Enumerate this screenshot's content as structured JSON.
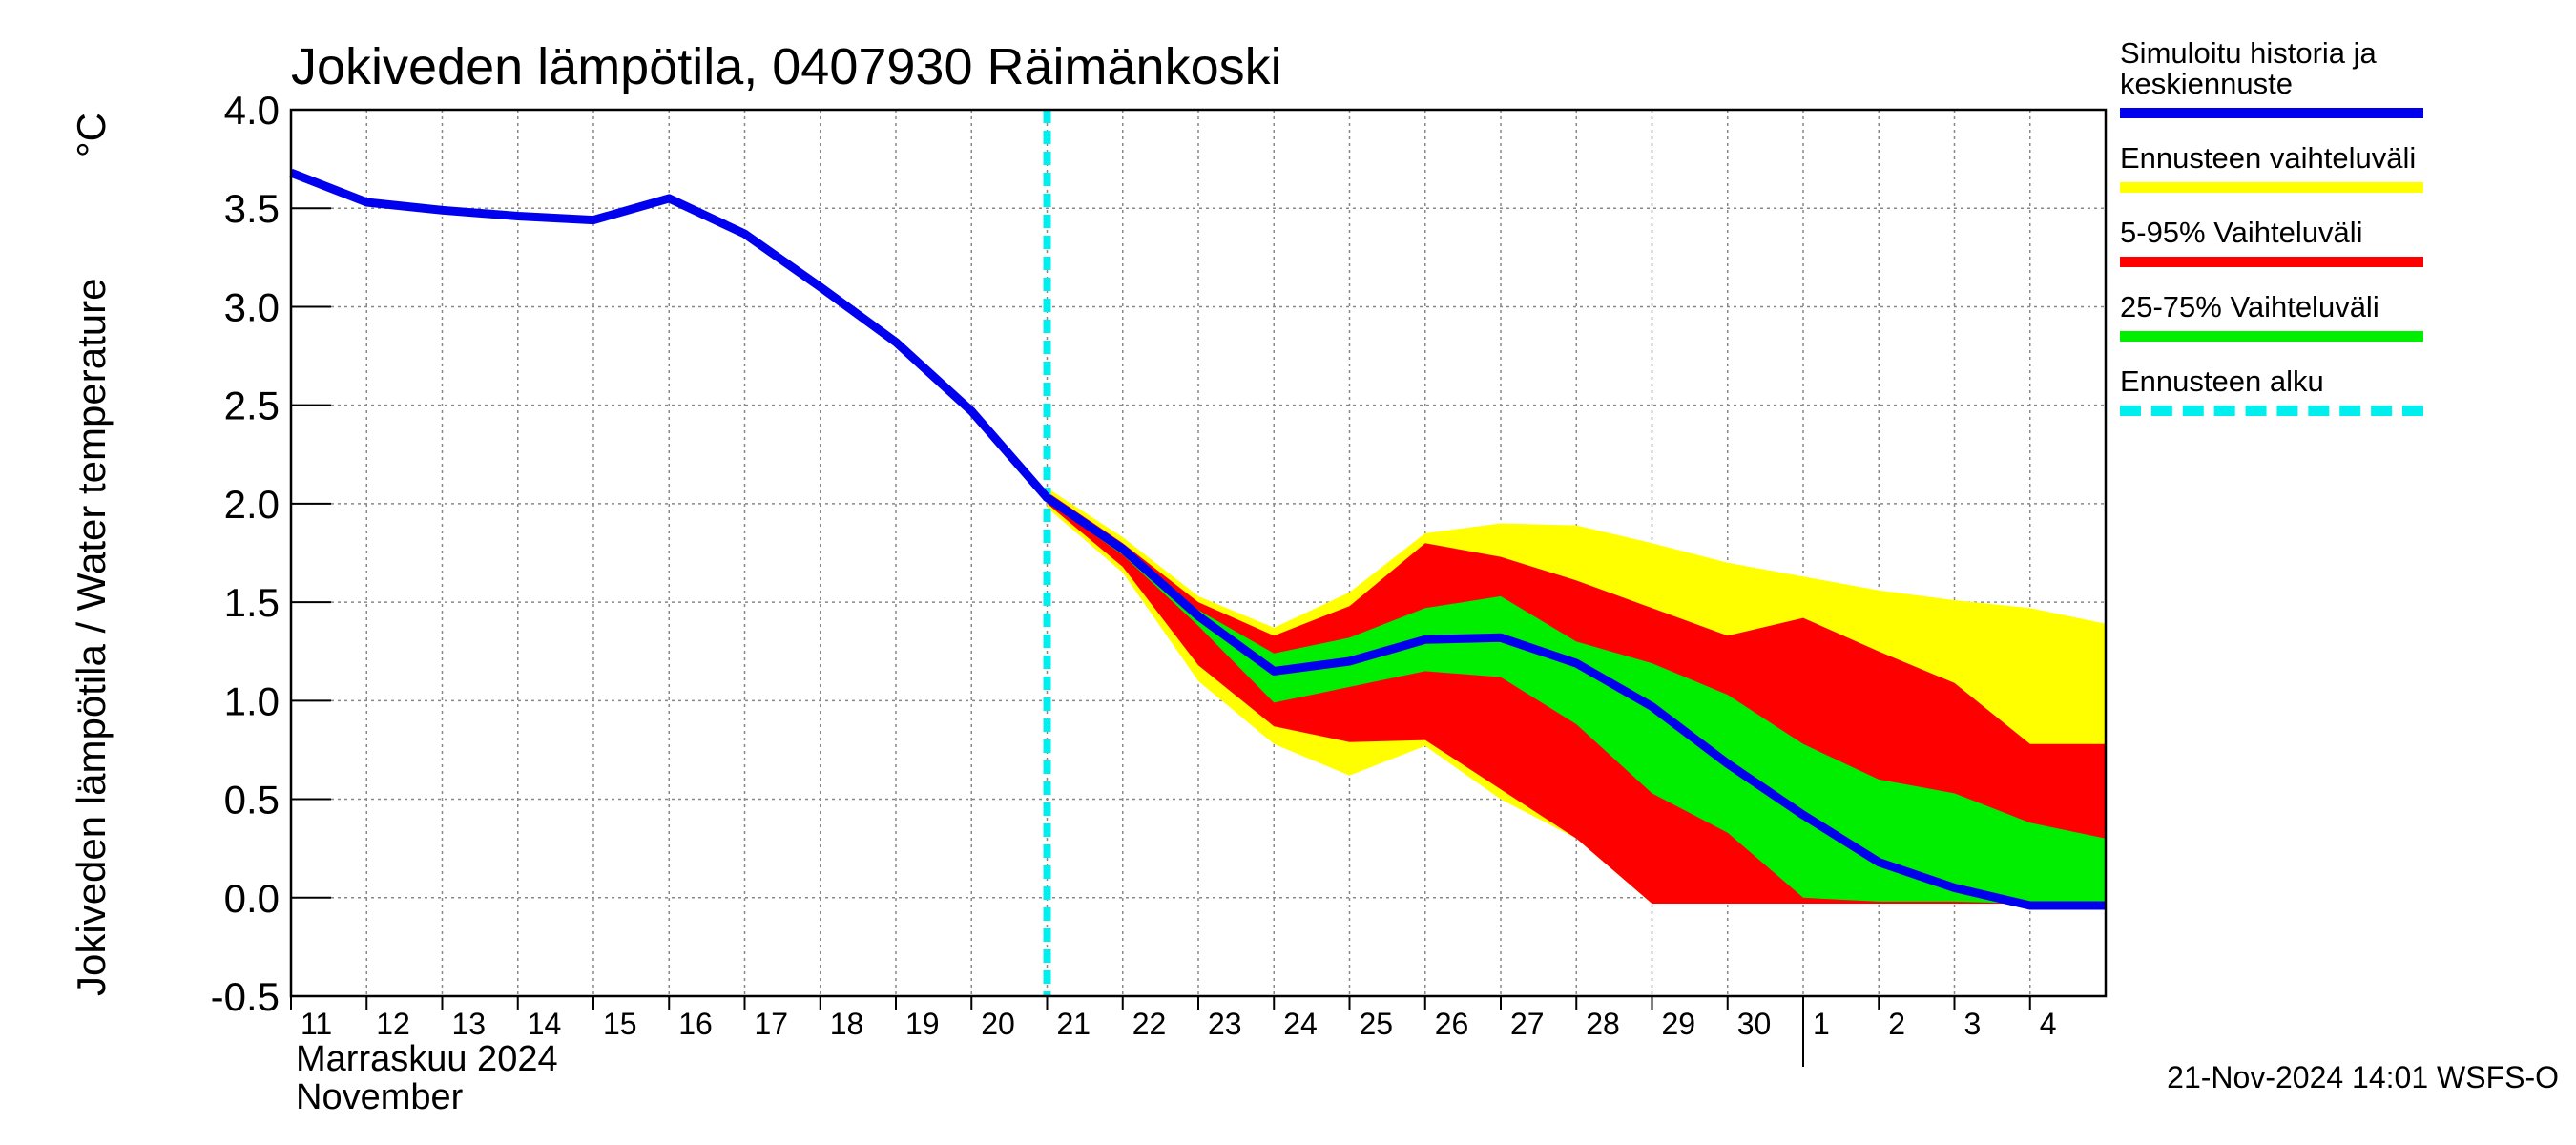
{
  "chart_data": {
    "type": "line",
    "title": "Jokiveden lämpötila, 0407930 Räimänkoski",
    "y_label": "Jokiveden lämpötila / Water temperature",
    "y_unit": "°C",
    "x_label_fi": "Marraskuu 2024",
    "x_label_en": "November",
    "footer": "21-Nov-2024 14:01 WSFS-O",
    "xlim": [
      "2024-11-11",
      "2024-12-05"
    ],
    "xticks": [
      {
        "value": "2024-11-11",
        "label": "11"
      },
      {
        "value": "2024-11-12",
        "label": "12"
      },
      {
        "value": "2024-11-13",
        "label": "13"
      },
      {
        "value": "2024-11-14",
        "label": "14"
      },
      {
        "value": "2024-11-15",
        "label": "15"
      },
      {
        "value": "2024-11-16",
        "label": "16"
      },
      {
        "value": "2024-11-17",
        "label": "17"
      },
      {
        "value": "2024-11-18",
        "label": "18"
      },
      {
        "value": "2024-11-19",
        "label": "19"
      },
      {
        "value": "2024-11-20",
        "label": "20"
      },
      {
        "value": "2024-11-21",
        "label": "21"
      },
      {
        "value": "2024-11-22",
        "label": "22"
      },
      {
        "value": "2024-11-23",
        "label": "23"
      },
      {
        "value": "2024-11-24",
        "label": "24"
      },
      {
        "value": "2024-11-25",
        "label": "25"
      },
      {
        "value": "2024-11-26",
        "label": "26"
      },
      {
        "value": "2024-11-27",
        "label": "27"
      },
      {
        "value": "2024-11-28",
        "label": "28"
      },
      {
        "value": "2024-11-29",
        "label": "29"
      },
      {
        "value": "2024-11-30",
        "label": "30"
      },
      {
        "value": "2024-12-01",
        "label": "1"
      },
      {
        "value": "2024-12-02",
        "label": "2"
      },
      {
        "value": "2024-12-03",
        "label": "3"
      },
      {
        "value": "2024-12-04",
        "label": "4"
      }
    ],
    "ylim": [
      -0.5,
      4.0
    ],
    "yticks": [
      -0.5,
      {
        "value": 0,
        "label": "0.0"
      },
      0.5,
      {
        "value": 1,
        "label": "1.0"
      },
      1.5,
      {
        "value": 2,
        "label": "2.0"
      },
      2.5,
      {
        "value": 3,
        "label": "3.0"
      },
      3.5,
      {
        "value": 4,
        "label": "4.0"
      }
    ],
    "grid": true,
    "legend": "right",
    "series": [
      {
        "name": "Simuloitu historia ja\nkeskiennuste",
        "color": "#0000ee",
        "kind": "line",
        "x": [
          "2024-11-11",
          "2024-11-12",
          "2024-11-13",
          "2024-11-14",
          "2024-11-15",
          "2024-11-16",
          "2024-11-17",
          "2024-11-18",
          "2024-11-19",
          "2024-11-20",
          "2024-11-21",
          "2024-11-22",
          "2024-11-23",
          "2024-11-24",
          "2024-11-25",
          "2024-11-26",
          "2024-11-27",
          "2024-11-28",
          "2024-11-29",
          "2024-11-30",
          "2024-12-01",
          "2024-12-02",
          "2024-12-03",
          "2024-12-04",
          "2024-12-05"
        ],
        "values": [
          3.68,
          3.53,
          3.49,
          3.46,
          3.44,
          3.55,
          3.37,
          3.1,
          2.82,
          2.47,
          2.03,
          1.77,
          1.43,
          1.15,
          1.2,
          1.31,
          1.32,
          1.19,
          0.97,
          0.68,
          0.42,
          0.18,
          0.05,
          -0.04,
          -0.04
        ]
      },
      {
        "name": "Ennusteen vaihteluväli",
        "color": "#ffff00",
        "kind": "band",
        "x": [
          "2024-11-21",
          "2024-11-22",
          "2024-11-23",
          "2024-11-24",
          "2024-11-25",
          "2024-11-26",
          "2024-11-27",
          "2024-11-28",
          "2024-11-29",
          "2024-11-30",
          "2024-12-01",
          "2024-12-02",
          "2024-12-03",
          "2024-12-04",
          "2024-12-05"
        ],
        "values": [
          2.08,
          1.83,
          1.53,
          1.37,
          1.55,
          1.85,
          1.9,
          1.89,
          1.8,
          1.7,
          1.63,
          1.56,
          1.51,
          1.47,
          1.39
        ],
        "lows": [
          1.98,
          1.65,
          1.1,
          0.78,
          0.62,
          0.77,
          0.5,
          0.3,
          -0.03,
          -0.03,
          -0.03,
          -0.03,
          -0.03,
          -0.03,
          -0.03
        ]
      },
      {
        "name": "5-95% Vaihteluväli",
        "color": "#ff0000",
        "kind": "band",
        "x": [
          "2024-11-21",
          "2024-11-22",
          "2024-11-23",
          "2024-11-24",
          "2024-11-25",
          "2024-11-26",
          "2024-11-27",
          "2024-11-28",
          "2024-11-29",
          "2024-11-30",
          "2024-12-01",
          "2024-12-02",
          "2024-12-03",
          "2024-12-04",
          "2024-12-05"
        ],
        "values": [
          2.06,
          1.8,
          1.5,
          1.33,
          1.48,
          1.8,
          1.73,
          1.61,
          1.47,
          1.33,
          1.42,
          1.25,
          1.09,
          0.78,
          0.78
        ],
        "lows": [
          2.0,
          1.68,
          1.18,
          0.87,
          0.79,
          0.8,
          0.55,
          0.3,
          -0.03,
          -0.03,
          -0.03,
          -0.03,
          -0.03,
          -0.03,
          -0.03
        ]
      },
      {
        "name": "25-75% Vaihteluväli",
        "color": "#00ee00",
        "kind": "band",
        "x": [
          "2024-11-21",
          "2024-11-22",
          "2024-11-23",
          "2024-11-24",
          "2024-11-25",
          "2024-11-26",
          "2024-11-27",
          "2024-11-28",
          "2024-11-29",
          "2024-11-30",
          "2024-12-01",
          "2024-12-02",
          "2024-12-03",
          "2024-12-04",
          "2024-12-05"
        ],
        "values": [
          2.04,
          1.78,
          1.46,
          1.24,
          1.32,
          1.47,
          1.53,
          1.3,
          1.19,
          1.03,
          0.78,
          0.6,
          0.53,
          0.38,
          0.3
        ],
        "lows": [
          2.01,
          1.74,
          1.38,
          0.99,
          1.07,
          1.15,
          1.12,
          0.88,
          0.53,
          0.33,
          0.0,
          -0.02,
          -0.02,
          -0.03,
          -0.03
        ]
      }
    ],
    "forecast_start": {
      "name": "Ennusteen alku",
      "color": "#00eeee",
      "x": "2024-11-21"
    }
  }
}
